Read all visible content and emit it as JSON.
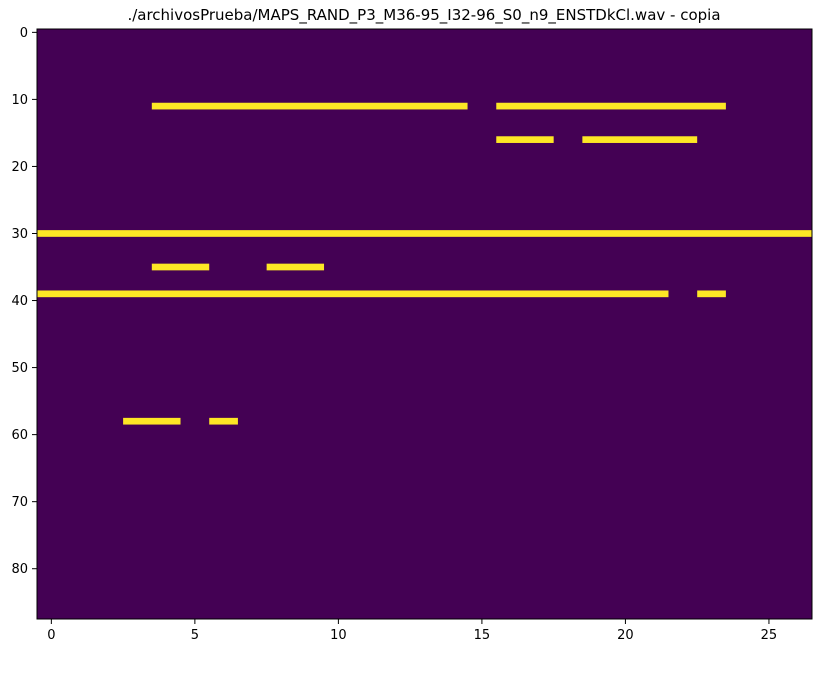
{
  "chart_data": {
    "type": "heatmap",
    "title": "./archivosPrueba/MAPS_RAND_P3_M36-95_I32-96_S0_n9_ENSTDkCl.wav - copia",
    "xlabel": "",
    "ylabel": "",
    "xlim": [
      -0.5,
      26.5
    ],
    "ylim": [
      87.5,
      -0.5
    ],
    "x_ticks": [
      0,
      5,
      10,
      15,
      20,
      25
    ],
    "x_tick_labels": [
      "0",
      "5",
      "10",
      "15",
      "20",
      "25"
    ],
    "y_ticks": [
      0,
      10,
      20,
      30,
      40,
      50,
      60,
      70,
      80
    ],
    "y_tick_labels": [
      "0",
      "10",
      "20",
      "30",
      "40",
      "50",
      "60",
      "70",
      "80"
    ],
    "grid": false,
    "background_color": "#440154",
    "active_color": "#fde725",
    "active_segments": [
      {
        "row": 11,
        "x_start": 4,
        "x_end": 14
      },
      {
        "row": 11,
        "x_start": 16,
        "x_end": 23
      },
      {
        "row": 16,
        "x_start": 16,
        "x_end": 17
      },
      {
        "row": 16,
        "x_start": 19,
        "x_end": 22
      },
      {
        "row": 30,
        "x_start": 0,
        "x_end": 26
      },
      {
        "row": 35,
        "x_start": 4,
        "x_end": 5
      },
      {
        "row": 35,
        "x_start": 8,
        "x_end": 9
      },
      {
        "row": 39,
        "x_start": 0,
        "x_end": 21
      },
      {
        "row": 39,
        "x_start": 23,
        "x_end": 23
      },
      {
        "row": 58,
        "x_start": 3,
        "x_end": 4
      },
      {
        "row": 58,
        "x_start": 6,
        "x_end": 6
      }
    ]
  }
}
